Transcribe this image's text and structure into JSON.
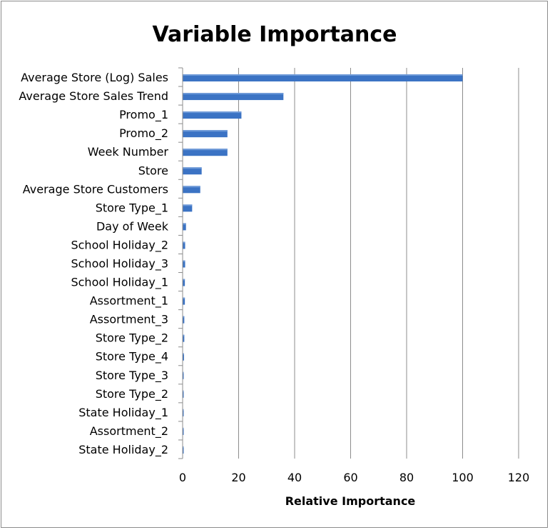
{
  "chart_data": {
    "type": "bar",
    "orientation": "horizontal",
    "title": "Variable Importance",
    "xlabel": "Relative Importance",
    "ylabel": "",
    "xlim": [
      0,
      120
    ],
    "xticks": [
      0,
      20,
      40,
      60,
      80,
      100,
      120
    ],
    "grid": "vertical",
    "legend": "none",
    "bar_color": "#3b73c4",
    "categories": [
      "Average Store (Log) Sales",
      "Average Store Sales Trend",
      "Promo_1",
      "Promo_2",
      "Week Number",
      "Store",
      "Average Store Customers",
      "Store Type_1",
      "Day of Week",
      "School Holiday_2",
      "School Holiday_3",
      "School Holiday_1",
      "Assortment_1",
      "Assortment_3",
      "Store Type_2",
      "Store Type_4",
      "Store Type_3",
      "Store Type_2",
      "State Holiday_1",
      "Assortment_2",
      "State Holiday_2"
    ],
    "values": [
      100,
      36,
      21,
      16,
      16,
      6.8,
      6.3,
      3.4,
      1.2,
      0.9,
      0.9,
      0.8,
      0.8,
      0.6,
      0.6,
      0.5,
      0.3,
      0.3,
      0.2,
      0.2,
      0.1
    ]
  }
}
